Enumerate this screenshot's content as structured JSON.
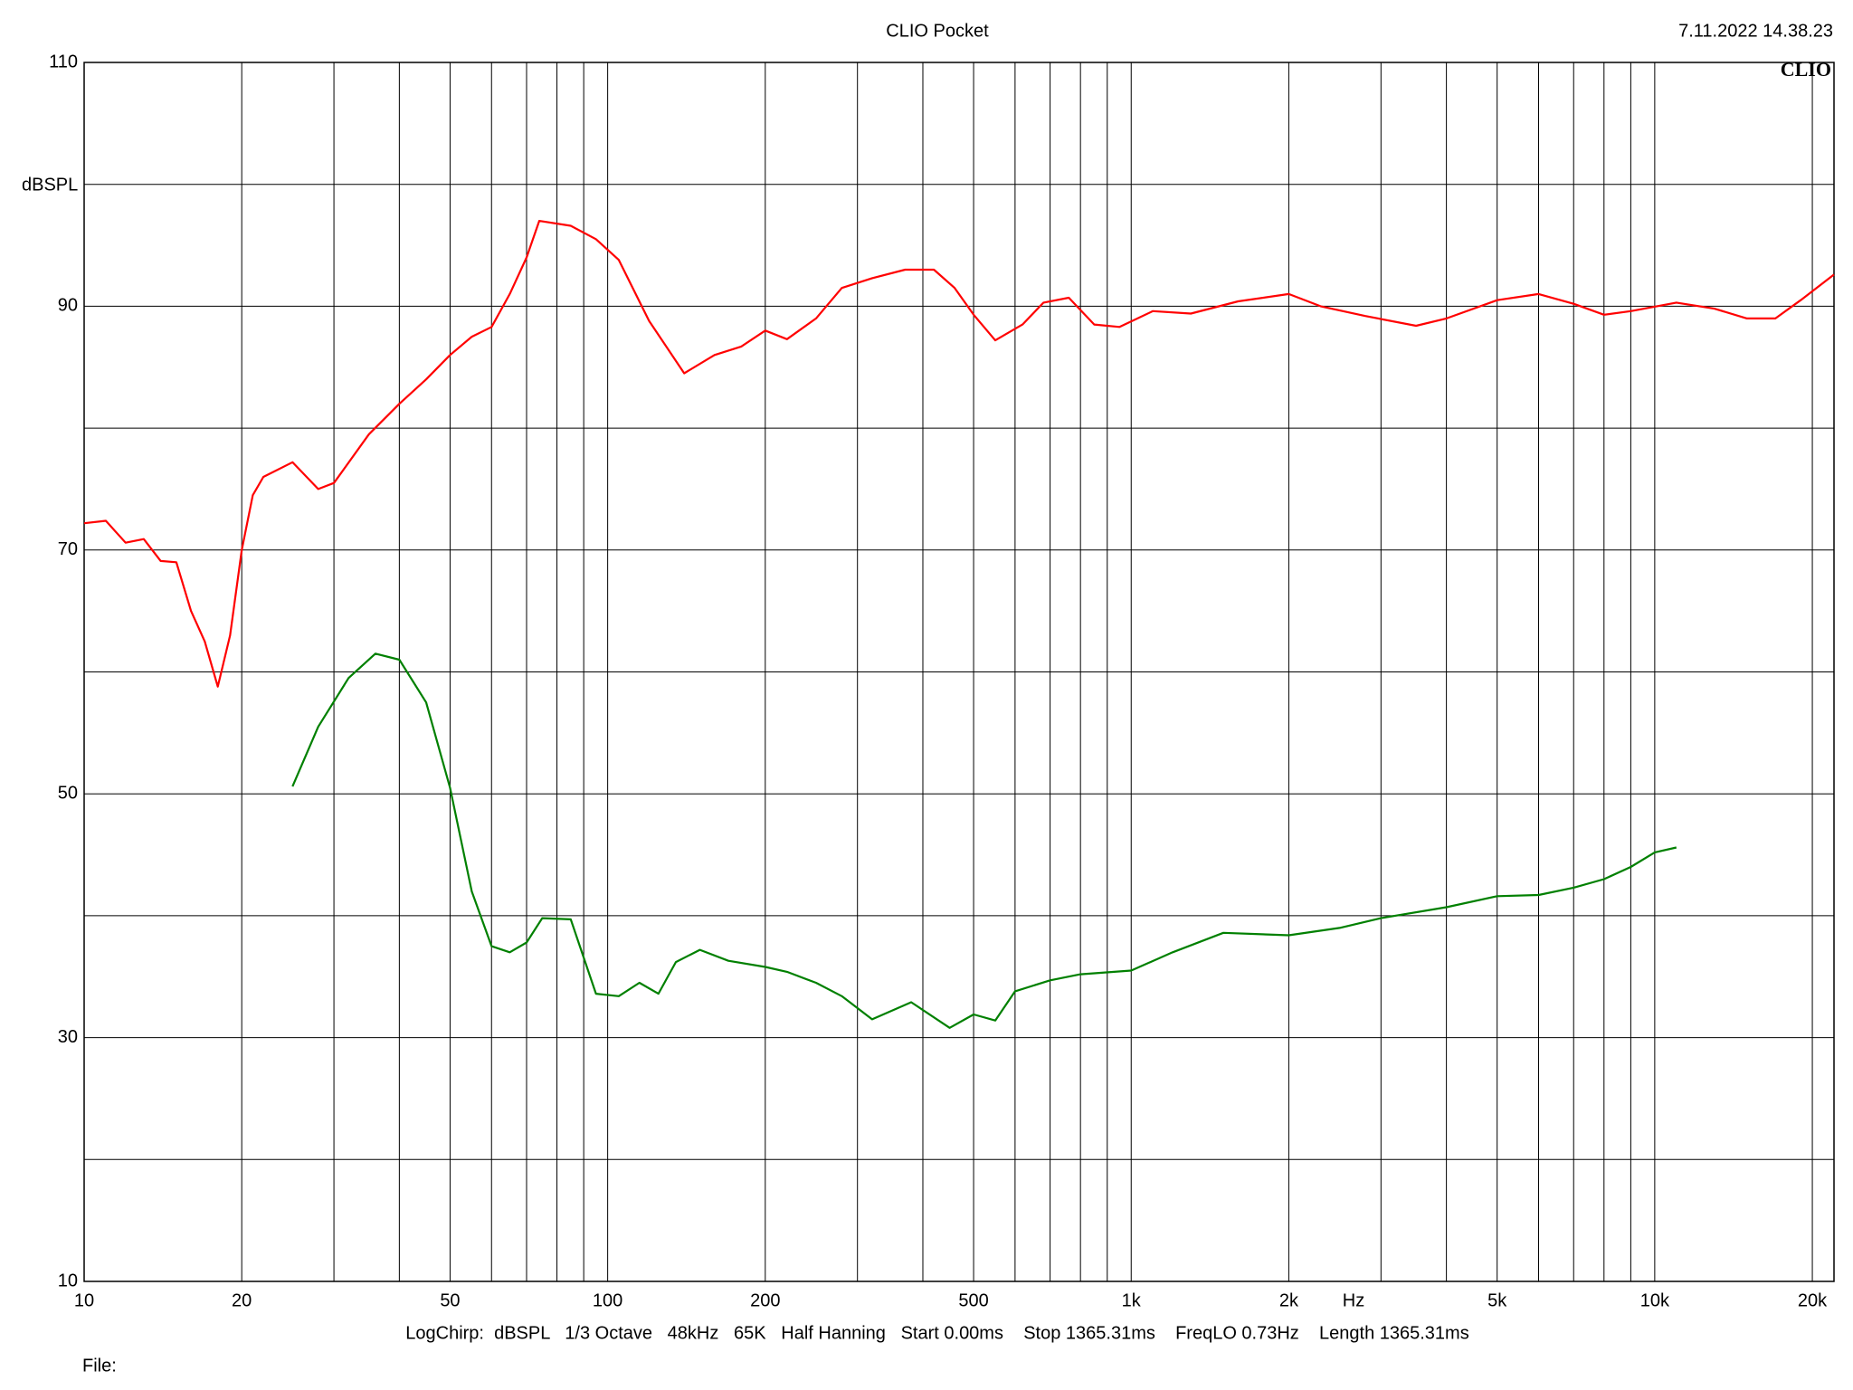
{
  "chart_data": {
    "type": "line",
    "title": "CLIO Pocket",
    "timestamp": "7.11.2022 14.38.23",
    "logo": "CLIO",
    "y_label": "dBSPL",
    "x_label": "Hz",
    "footer": "LogChirp:  dBSPL   1/3 Octave   48kHz   65K   Half Hanning   Start 0.00ms    Stop 1365.31ms    FreqLO 0.73Hz    Length 1365.31ms",
    "file_label": "File:",
    "x_log": true,
    "grid": true,
    "xlim": [
      10,
      22000
    ],
    "ylim": [
      10,
      110
    ],
    "xticks": [
      10,
      20,
      50,
      100,
      200,
      500,
      {
        "value": 1000,
        "label": "1k"
      },
      {
        "value": 2000,
        "label": "2k"
      },
      {
        "value": 5000,
        "label": "5k"
      },
      {
        "value": 10000,
        "label": "10k"
      },
      {
        "value": 20000,
        "label": "20k"
      }
    ],
    "xminor": [
      30,
      40,
      60,
      70,
      80,
      90,
      300,
      400,
      600,
      700,
      800,
      900,
      3000,
      4000,
      6000,
      7000,
      8000,
      9000
    ],
    "yticks": [
      10,
      30,
      50,
      70,
      90,
      110
    ],
    "yminor": [
      20,
      40,
      60,
      80,
      100
    ],
    "series": [
      {
        "color": "#ff0000",
        "x": [
          10,
          11,
          12,
          13,
          14,
          15,
          16,
          17,
          18,
          19,
          20,
          21,
          22,
          25,
          28,
          30,
          35,
          40,
          45,
          50,
          55,
          60,
          65,
          70,
          74,
          85,
          95,
          105,
          120,
          140,
          160,
          180,
          200,
          220,
          250,
          280,
          320,
          370,
          420,
          460,
          500,
          550,
          620,
          680,
          760,
          850,
          950,
          1100,
          1300,
          1600,
          2000,
          2300,
          2800,
          3500,
          4000,
          5000,
          6000,
          7000,
          8000,
          9000,
          11000,
          13000,
          15000,
          17000,
          19000,
          22000
        ],
        "values": [
          72.2,
          72.4,
          70.6,
          70.9,
          69.1,
          69.0,
          65,
          62.5,
          58.8,
          63,
          70,
          74.5,
          76,
          77.2,
          75.0,
          75.5,
          79.5,
          82,
          84,
          86,
          87.5,
          88.3,
          91,
          94,
          97.0,
          96.6,
          95.5,
          93.8,
          88.8,
          84.5,
          86.0,
          86.7,
          88.0,
          87.3,
          89,
          91.5,
          92.3,
          93.0,
          93.0,
          91.5,
          89.3,
          87.2,
          88.5,
          90.3,
          90.7,
          88.5,
          88.3,
          89.6,
          89.4,
          90.4,
          91.0,
          90,
          89.2,
          88.4,
          89.0,
          90.5,
          91.0,
          90.2,
          89.3,
          89.6,
          90.3,
          89.8,
          89.0,
          89.0,
          90.5,
          92.6
        ]
      },
      {
        "color": "#008000",
        "x": [
          25,
          28,
          32,
          36,
          40,
          45,
          50,
          55,
          60,
          65,
          70,
          75,
          85,
          95,
          105,
          115,
          125,
          135,
          150,
          170,
          200,
          220,
          250,
          280,
          320,
          380,
          450,
          500,
          550,
          600,
          700,
          800,
          1000,
          1200,
          1500,
          2000,
          2500,
          3000,
          4000,
          5000,
          6000,
          7000,
          8000,
          9000,
          10000,
          11000
        ],
        "values": [
          50.6,
          55.5,
          59.5,
          61.5,
          61.0,
          57.5,
          50.5,
          42,
          37.5,
          37.0,
          37.8,
          39.8,
          39.7,
          33.6,
          33.4,
          34.5,
          33.6,
          36.2,
          37.2,
          36.3,
          35.8,
          35.4,
          34.5,
          33.4,
          31.5,
          32.9,
          30.8,
          31.9,
          31.4,
          33.8,
          34.7,
          35.2,
          35.5,
          37,
          38.6,
          38.4,
          39,
          39.8,
          40.7,
          41.6,
          41.7,
          42.3,
          43.0,
          44.0,
          45.2,
          45.6
        ]
      }
    ]
  }
}
